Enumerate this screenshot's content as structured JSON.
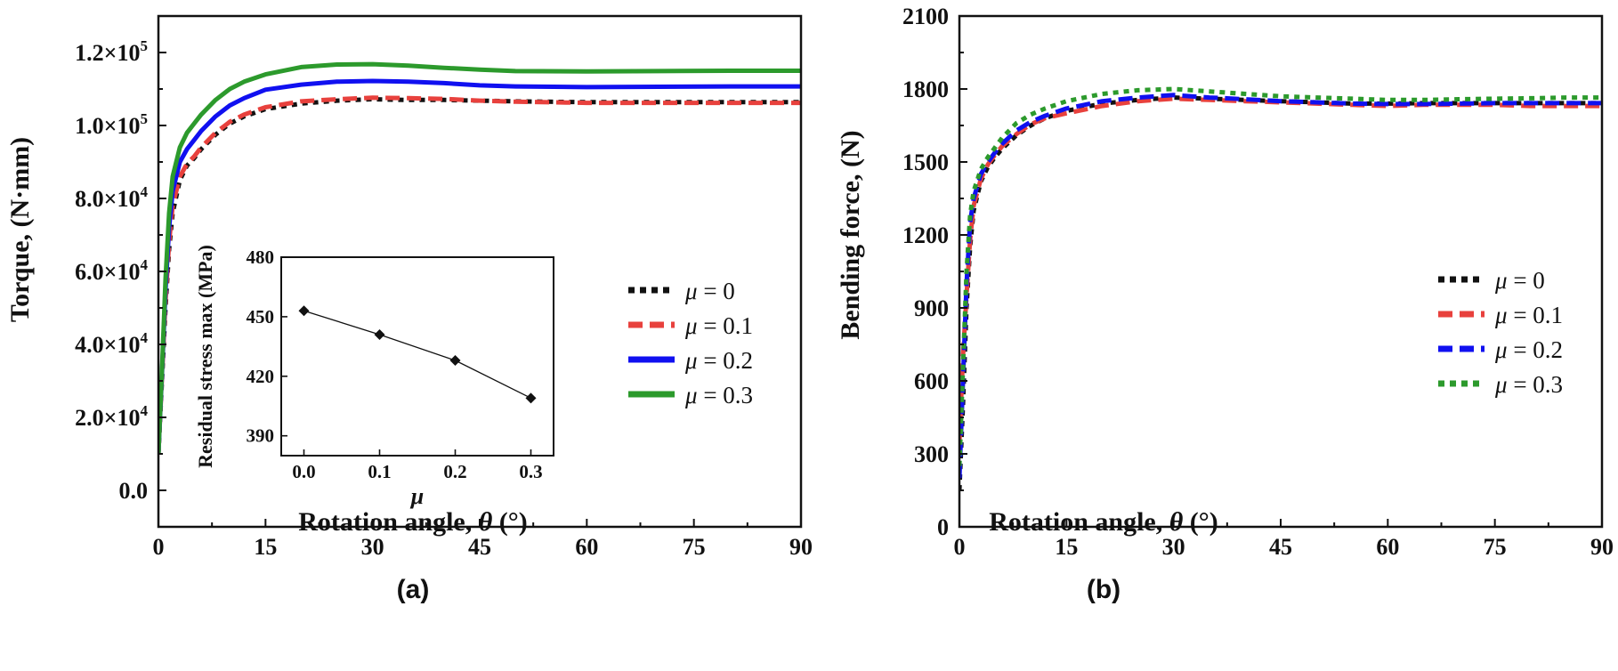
{
  "colors": {
    "mu0": "#111111",
    "mu01": "#e8413d",
    "mu02": "#1010f0",
    "mu03": "#2c9a2c",
    "axis": "#111111"
  },
  "panel_labels": {
    "a": "(a)",
    "b": "(b)"
  },
  "chart_data": [
    {
      "id": "a",
      "type": "line",
      "ylabel": "Torque, (N·mm)",
      "xlabel_prefix": "Rotation angle, ",
      "xlabel_symbol": "θ",
      "xlabel_suffix": " (°)",
      "xlim": [
        0,
        90
      ],
      "ylim": [
        -10000,
        130000
      ],
      "xticks": [
        0,
        15,
        30,
        45,
        60,
        75,
        90
      ],
      "yticks": [
        {
          "value": 0,
          "mant": "0.0",
          "exp": ""
        },
        {
          "value": 20000,
          "mant": "2.0×10",
          "exp": "4"
        },
        {
          "value": 40000,
          "mant": "4.0×10",
          "exp": "4"
        },
        {
          "value": 60000,
          "mant": "6.0×10",
          "exp": "4"
        },
        {
          "value": 80000,
          "mant": "8.0×10",
          "exp": "4"
        },
        {
          "value": 100000,
          "mant": "1.0×10",
          "exp": "5"
        },
        {
          "value": 120000,
          "mant": "1.2×10",
          "exp": "5"
        }
      ],
      "legend_position": "right-center",
      "series": [
        {
          "name": "μ = 0",
          "style": "dotted",
          "color_key": "mu0",
          "x": [
            0,
            0.5,
            1,
            1.5,
            2,
            3,
            4,
            5,
            6,
            8,
            10,
            12,
            15,
            20,
            25,
            30,
            35,
            40,
            45,
            50,
            60,
            70,
            80,
            90
          ],
          "y": [
            10000,
            30000,
            50000,
            66000,
            76000,
            85000,
            89000,
            91000,
            93500,
            97500,
            100500,
            102500,
            104500,
            106000,
            106800,
            107200,
            107000,
            107000,
            106800,
            106600,
            106400,
            106400,
            106400,
            106400
          ]
        },
        {
          "name": "μ = 0.1",
          "style": "dashed",
          "color_key": "mu01",
          "x": [
            0,
            0.5,
            1,
            1.5,
            2,
            3,
            4,
            5,
            6,
            8,
            10,
            12,
            15,
            20,
            25,
            30,
            35,
            40,
            45,
            50,
            60,
            70,
            80,
            90
          ],
          "y": [
            10000,
            31000,
            52000,
            68000,
            78000,
            86000,
            89500,
            91500,
            94000,
            98000,
            101000,
            103000,
            105000,
            106600,
            107200,
            107600,
            107500,
            107300,
            106800,
            106500,
            106200,
            106200,
            106200,
            106200
          ]
        },
        {
          "name": "μ = 0.2",
          "style": "solid",
          "color_key": "mu02",
          "x": [
            0,
            0.5,
            1,
            1.5,
            2,
            3,
            4,
            5,
            6,
            8,
            10,
            12,
            15,
            20,
            25,
            30,
            35,
            40,
            45,
            50,
            60,
            70,
            80,
            90
          ],
          "y": [
            10000,
            32000,
            55000,
            72000,
            82000,
            90000,
            93500,
            96000,
            98500,
            102500,
            105500,
            107500,
            109800,
            111200,
            112000,
            112200,
            112000,
            111600,
            111000,
            110700,
            110500,
            110600,
            110700,
            110700
          ]
        },
        {
          "name": "μ = 0.3",
          "style": "solid",
          "color_key": "mu03",
          "x": [
            0,
            0.5,
            1,
            1.5,
            2,
            3,
            4,
            5,
            6,
            8,
            10,
            12,
            15,
            20,
            25,
            30,
            35,
            40,
            45,
            50,
            60,
            70,
            80,
            90
          ],
          "y": [
            10000,
            33000,
            58000,
            76000,
            86000,
            94000,
            98000,
            100500,
            103000,
            107000,
            110000,
            112000,
            114000,
            116000,
            116700,
            116800,
            116400,
            115800,
            115300,
            114900,
            114800,
            114900,
            115000,
            115000
          ]
        }
      ],
      "inset": {
        "type": "line",
        "xlabel": "μ",
        "ylabel": "Residual stress max (MPa)",
        "xlim": [
          -0.03,
          0.33
        ],
        "ylim": [
          380,
          480
        ],
        "xticks": [
          "0.0",
          "0.1",
          "0.2",
          "0.3"
        ],
        "yticks": [
          "390",
          "420",
          "450",
          "480"
        ],
        "x": [
          0.0,
          0.1,
          0.2,
          0.3
        ],
        "y": [
          453,
          441,
          428,
          409
        ]
      }
    },
    {
      "id": "b",
      "type": "line",
      "ylabel": "Bending force, (N)",
      "xlabel_prefix": "Rotation angle, ",
      "xlabel_symbol": "θ",
      "xlabel_suffix": " (°)",
      "xlim": [
        0,
        90
      ],
      "ylim": [
        0,
        2100
      ],
      "xticks": [
        0,
        15,
        30,
        45,
        60,
        75,
        90
      ],
      "yticks": [
        "0",
        "300",
        "600",
        "900",
        "1200",
        "1500",
        "1800",
        "2100"
      ],
      "legend_position": "right-center",
      "series": [
        {
          "name": "μ = 0",
          "style": "dotted",
          "color_key": "mu0",
          "x": [
            0,
            0.5,
            1,
            1.5,
            2,
            3,
            4,
            5,
            6,
            8,
            10,
            12,
            15,
            20,
            25,
            30,
            35,
            40,
            45,
            50,
            55,
            60,
            65,
            70,
            75,
            80,
            85,
            90
          ],
          "y": [
            150,
            500,
            900,
            1150,
            1300,
            1420,
            1480,
            1520,
            1555,
            1610,
            1650,
            1680,
            1710,
            1740,
            1755,
            1765,
            1760,
            1755,
            1750,
            1745,
            1740,
            1740,
            1742,
            1742,
            1742,
            1742,
            1742,
            1742
          ]
        },
        {
          "name": "μ = 0.1",
          "style": "dashed",
          "color_key": "mu01",
          "x": [
            0,
            0.5,
            1,
            1.5,
            2,
            3,
            4,
            5,
            6,
            8,
            10,
            12,
            15,
            20,
            25,
            30,
            35,
            40,
            45,
            50,
            55,
            60,
            65,
            70,
            75,
            80,
            85,
            90
          ],
          "y": [
            350,
            700,
            950,
            1180,
            1320,
            1430,
            1490,
            1530,
            1565,
            1615,
            1655,
            1680,
            1700,
            1730,
            1750,
            1760,
            1755,
            1750,
            1745,
            1740,
            1735,
            1730,
            1735,
            1735,
            1735,
            1730,
            1730,
            1730
          ]
        },
        {
          "name": "μ = 0.2",
          "style": "dashed",
          "color_key": "mu02",
          "x": [
            0,
            0.5,
            1,
            1.5,
            2,
            3,
            4,
            5,
            6,
            8,
            10,
            12,
            15,
            20,
            25,
            30,
            35,
            40,
            45,
            50,
            55,
            60,
            65,
            70,
            75,
            80,
            85,
            90
          ],
          "y": [
            200,
            600,
            1000,
            1250,
            1350,
            1450,
            1500,
            1540,
            1575,
            1630,
            1665,
            1690,
            1720,
            1750,
            1765,
            1775,
            1765,
            1758,
            1750,
            1745,
            1740,
            1738,
            1738,
            1740,
            1742,
            1742,
            1742,
            1742
          ]
        },
        {
          "name": "μ = 0.3",
          "style": "dotted",
          "color_key": "mu03",
          "x": [
            0,
            0.5,
            1,
            1.5,
            2,
            3,
            4,
            5,
            6,
            8,
            10,
            12,
            15,
            20,
            25,
            30,
            35,
            40,
            45,
            50,
            55,
            60,
            65,
            70,
            75,
            80,
            85,
            90
          ],
          "y": [
            250,
            650,
            1050,
            1280,
            1380,
            1470,
            1520,
            1560,
            1600,
            1660,
            1695,
            1720,
            1750,
            1780,
            1795,
            1800,
            1790,
            1780,
            1770,
            1765,
            1760,
            1755,
            1755,
            1758,
            1760,
            1762,
            1765,
            1765
          ]
        }
      ]
    }
  ]
}
